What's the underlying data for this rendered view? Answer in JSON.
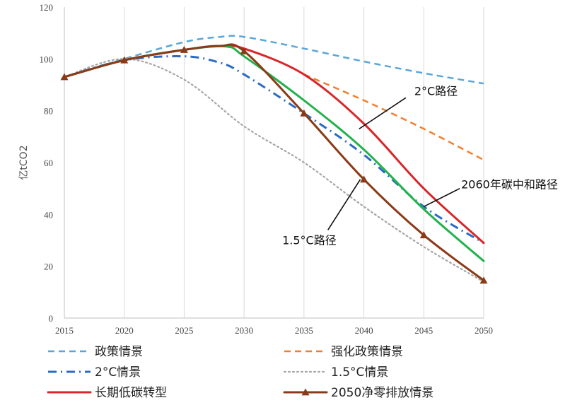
{
  "chart_data": {
    "type": "line",
    "title": "",
    "xlabel": "",
    "ylabel": "亿tCO2",
    "xlim": [
      2015,
      2050
    ],
    "ylim": [
      0,
      120
    ],
    "x_ticks": [
      "2015",
      "2020",
      "2025",
      "2030",
      "2035",
      "2040",
      "2045",
      "2050"
    ],
    "y_ticks": [
      "0",
      "20",
      "40",
      "60",
      "80",
      "100",
      "120"
    ],
    "grid": "vertical",
    "legend_position": "bottom",
    "series": [
      {
        "name": "政策情景",
        "color": "#5aa6d8",
        "style": "dashed",
        "points": [
          [
            2015,
            93
          ],
          [
            2020,
            100
          ],
          [
            2025,
            106.5
          ],
          [
            2028,
            108.5
          ],
          [
            2030,
            108.5
          ],
          [
            2035,
            104
          ],
          [
            2040,
            99
          ],
          [
            2045,
            94.5
          ],
          [
            2050,
            90.5
          ]
        ]
      },
      {
        "name": "强化政策情景",
        "color": "#f07f2e",
        "style": "dashed",
        "points": [
          [
            2035,
            94
          ],
          [
            2040,
            84
          ],
          [
            2045,
            73
          ],
          [
            2050,
            61
          ]
        ]
      },
      {
        "name": "2°C情景",
        "color": "#2b6bc4",
        "style": "dashdot",
        "points": [
          [
            2015,
            93
          ],
          [
            2020,
            99.5
          ],
          [
            2025,
            101
          ],
          [
            2028,
            98.5
          ],
          [
            2030,
            94
          ],
          [
            2035,
            79
          ],
          [
            2040,
            63
          ],
          [
            2045,
            43
          ],
          [
            2050,
            29
          ]
        ]
      },
      {
        "name": "1.5°C情景",
        "color": "#a6a6a6",
        "style": "dotted",
        "points": [
          [
            2015,
            93
          ],
          [
            2020,
            100
          ],
          [
            2025,
            92
          ],
          [
            2030,
            74
          ],
          [
            2035,
            60
          ],
          [
            2040,
            43
          ],
          [
            2045,
            27.5
          ],
          [
            2050,
            14
          ]
        ]
      },
      {
        "name": "长期低碳转型",
        "color": "#d8262b",
        "style": "solid",
        "points": [
          [
            2015,
            93
          ],
          [
            2020,
            99.5
          ],
          [
            2025,
            103.5
          ],
          [
            2028,
            105
          ],
          [
            2030,
            104
          ],
          [
            2035,
            94
          ],
          [
            2040,
            75
          ],
          [
            2045,
            50
          ],
          [
            2050,
            29
          ]
        ]
      },
      {
        "name": "",
        "color": "#22b24c",
        "style": "solid",
        "points": [
          [
            2015,
            93
          ],
          [
            2020,
            99.5
          ],
          [
            2025,
            103.5
          ],
          [
            2028.5,
            104.8
          ],
          [
            2030,
            101
          ],
          [
            2035,
            84
          ],
          [
            2040,
            65
          ],
          [
            2045,
            42
          ],
          [
            2050,
            22
          ]
        ]
      },
      {
        "name": "2050净零排放情景",
        "color": "#8b3a17",
        "style": "solid-triangle",
        "points": [
          [
            2015,
            93
          ],
          [
            2020,
            99.5
          ],
          [
            2025,
            103.5
          ],
          [
            2028,
            105
          ],
          [
            2030,
            103
          ],
          [
            2035,
            79
          ],
          [
            2040,
            53.5
          ],
          [
            2045,
            32
          ],
          [
            2050,
            14.5
          ]
        ]
      }
    ],
    "annotations": [
      {
        "text": "2°C路径",
        "target": [
          2039.6,
          73
        ],
        "text_at": [
          2043.5,
          85
        ]
      },
      {
        "text": "2060年碳中和路径",
        "target": [
          2045,
          43
        ],
        "text_at": [
          2048,
          50
        ]
      },
      {
        "text": "1.5°C路径",
        "target": [
          2039.7,
          53.5
        ],
        "text_at": [
          2037,
          34
        ]
      }
    ],
    "legend": [
      {
        "label": "政策情景",
        "series": 0
      },
      {
        "label": "强化政策情景",
        "series": 1
      },
      {
        "label": "2°C情景",
        "series": 2
      },
      {
        "label": "1.5°C情景",
        "series": 3
      },
      {
        "label": "长期低碳转型",
        "series": 4
      },
      {
        "label": "2050净零排放情景",
        "series": 6
      }
    ]
  }
}
